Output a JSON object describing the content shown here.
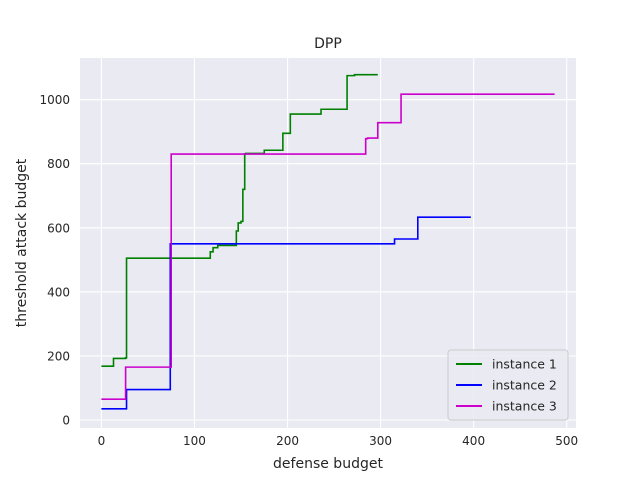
{
  "chart_data": {
    "type": "line",
    "step": "post",
    "title": "DPP",
    "xlabel": "defense budget",
    "ylabel": "threshold attack budget",
    "xlim": [
      -23,
      510
    ],
    "ylim": [
      -25,
      1130
    ],
    "xticks": [
      0,
      100,
      200,
      300,
      400,
      500
    ],
    "yticks": [
      0,
      200,
      400,
      600,
      800,
      1000
    ],
    "xtick_labels": [
      "0",
      "100",
      "200",
      "300",
      "400",
      "500"
    ],
    "ytick_labels": [
      "0",
      "200",
      "400",
      "600",
      "800",
      "1000"
    ],
    "grid": true,
    "legend_position": "lower-right",
    "background": "#eaeaf2",
    "series": [
      {
        "name": "instance 1",
        "color": "#008000",
        "x": [
          0,
          13,
          26,
          27,
          117,
          120,
          125,
          145,
          147,
          150,
          152,
          154,
          155,
          175,
          195,
          203,
          236,
          264,
          272,
          297
        ],
        "y": [
          168,
          192,
          194,
          505,
          525,
          538,
          545,
          590,
          615,
          620,
          720,
          830,
          832,
          842,
          895,
          955,
          970,
          1075,
          1078,
          1078
        ]
      },
      {
        "name": "instance 2",
        "color": "#0000ff",
        "x": [
          0,
          25,
          27,
          74,
          75,
          315,
          317,
          340,
          342,
          397
        ],
        "y": [
          35,
          35,
          95,
          550,
          550,
          565,
          565,
          633,
          633,
          633
        ]
      },
      {
        "name": "instance 3",
        "color": "#cc00cc",
        "x": [
          0,
          26,
          75,
          284,
          286,
          297,
          322,
          487
        ],
        "y": [
          65,
          165,
          830,
          878,
          880,
          928,
          1017,
          1017
        ]
      }
    ]
  }
}
